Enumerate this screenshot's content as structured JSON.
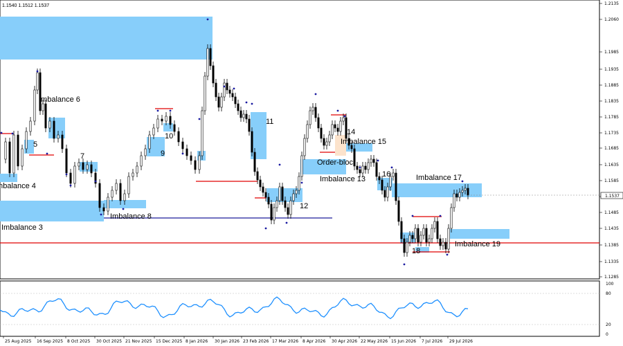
{
  "header": {
    "ohlc": "1.1540 1.1512 1.1537"
  },
  "price_axis": {
    "ticks": [
      "1.2135",
      "1.2060",
      "1.1985",
      "1.1935",
      "1.1885",
      "1.1835",
      "1.1785",
      "1.1735",
      "1.1685",
      "1.1635",
      "1.1585",
      "1.1535",
      "1.1485",
      "1.1435",
      "1.1385",
      "1.1335",
      "1.1285"
    ],
    "current_price": "1.1537"
  },
  "indicator_axis": {
    "ticks": [
      "100",
      "80",
      "20",
      "0"
    ]
  },
  "time_axis": {
    "labels": [
      "25 Aug 2025",
      "16 Sep 2025",
      "8 Oct 2025",
      "30 Oct 2025",
      "21 Nov 2025",
      "15 Dec 2025",
      "8 Jan 2026",
      "30 Jan 2026",
      "23 Feb 2026",
      "17 Mar 2026",
      "8 Apr 2026",
      "30 Apr 2026",
      "22 May 2026",
      "15 Jun 2026",
      "7 Jul 2026",
      "29 Jul 2026"
    ]
  },
  "annotations": {
    "imb3": "Imbalance 3",
    "imb4": "Imbalance 4",
    "imb6": "Imbalance 6",
    "imb8": "Imbalance 8",
    "imb13": "Imbalance 13",
    "imb15": "Imbalance 15",
    "imb17": "Imbalance 17",
    "imb19": "Imbalance 19",
    "ob": "Order-bloc",
    "n5": "5",
    "n7": "7",
    "n9": "9",
    "n10": "10",
    "n11": "11",
    "n12": "12",
    "n14": "14",
    "n16": "16",
    "n18": "18"
  },
  "colors": {
    "imbalance_zone": "#87cefa",
    "resistance": "#e00000",
    "support": "#1a1a9a",
    "oscillator": "#1e90ff",
    "candle": "#000000",
    "fractal": "#1a1aa0",
    "order_block": "#fce3cc"
  }
}
